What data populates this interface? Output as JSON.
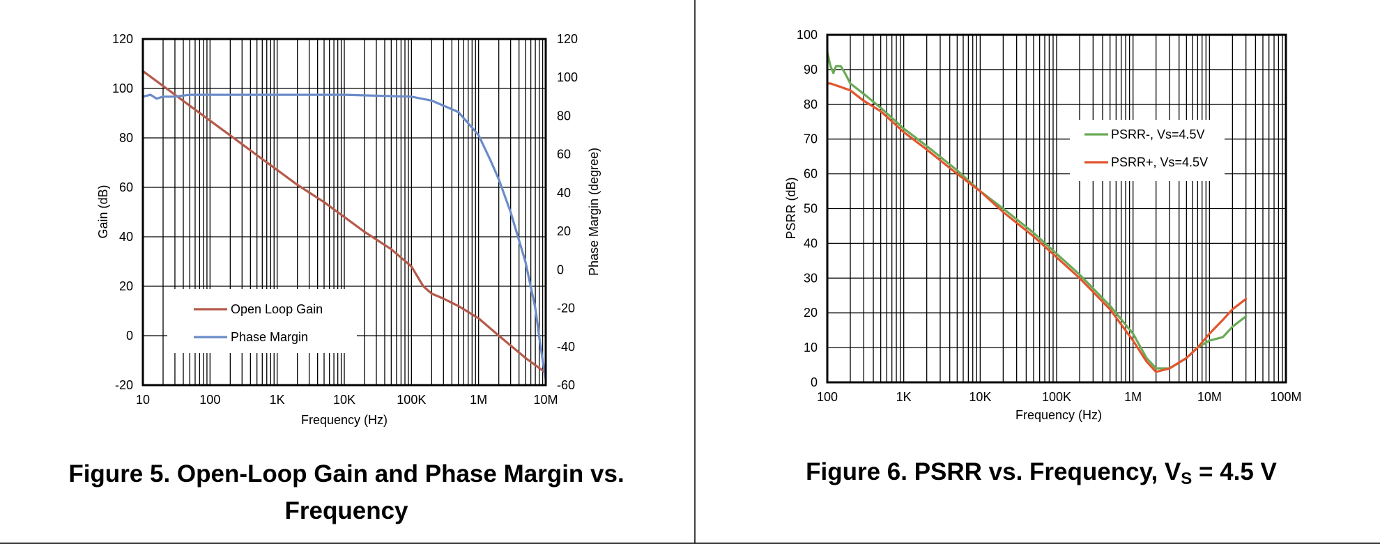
{
  "chart_data": [
    {
      "type": "line",
      "caption": "Figure 5. Open-Loop Gain and Phase Margin vs. Frequency",
      "caption_lines": [
        "Figure 5. Open-Loop Gain and Phase Margin vs.",
        "Frequency"
      ],
      "xlabel": "Frequency (Hz)",
      "ylabel": "Gain (dB)",
      "y2label": "Phase Margin (degree)",
      "xscale": "log",
      "xlim": [
        10,
        10000000
      ],
      "ylim": [
        -20,
        120
      ],
      "y2lim": [
        -60,
        120
      ],
      "xticks": [
        10,
        100,
        1000,
        10000,
        100000,
        1000000,
        10000000
      ],
      "xtick_labels": [
        "10",
        "100",
        "1K",
        "10K",
        "100K",
        "1M",
        "10M"
      ],
      "yticks": [
        -20,
        0,
        20,
        40,
        60,
        80,
        100,
        120
      ],
      "y2ticks": [
        -60,
        -40,
        -20,
        0,
        20,
        40,
        60,
        80,
        100,
        120
      ],
      "grid": true,
      "legend_position": "bottom-left",
      "series": [
        {
          "name": "Open Loop Gain",
          "axis": "left",
          "color": "#b55a4a",
          "x": [
            10,
            20,
            50,
            100,
            200,
            500,
            1000,
            2000,
            5000,
            10000,
            20000,
            50000,
            100000,
            150000,
            200000,
            300000,
            500000,
            1000000,
            2000000,
            5000000,
            10000000
          ],
          "y": [
            107,
            101,
            93,
            87,
            81,
            73,
            67,
            61,
            54,
            48,
            42,
            35,
            28,
            20,
            17,
            15,
            12,
            7,
            0,
            -9,
            -15
          ]
        },
        {
          "name": "Phase Margin",
          "axis": "right",
          "color": "#6b8cc9",
          "x": [
            10,
            13,
            16,
            20,
            30,
            50,
            100,
            1000,
            10000,
            100000,
            200000,
            500000,
            1000000,
            1500000,
            2000000,
            3000000,
            5000000,
            7000000,
            8000000,
            9000000,
            10000000
          ],
          "y": [
            90,
            91,
            89,
            90,
            90,
            91,
            91,
            91,
            91,
            90,
            88,
            82,
            70,
            57,
            47,
            30,
            4,
            -20,
            -35,
            -47,
            -57
          ]
        }
      ]
    },
    {
      "type": "line",
      "caption_main": "Figure 6. PSRR vs. Frequency, V",
      "caption_sub": "S",
      "caption_tail": " = 4.5 V",
      "xlabel": "Frequency (Hz)",
      "ylabel": "PSRR (dB)",
      "xscale": "log",
      "xlim": [
        100,
        100000000
      ],
      "ylim": [
        0,
        100
      ],
      "xticks": [
        100,
        1000,
        10000,
        100000,
        1000000,
        10000000,
        100000000
      ],
      "xtick_labels": [
        "100",
        "1K",
        "10K",
        "100K",
        "1M",
        "10M",
        "100M"
      ],
      "yticks": [
        0,
        10,
        20,
        30,
        40,
        50,
        60,
        70,
        80,
        90,
        100
      ],
      "grid": true,
      "legend_position": "upper-center-right",
      "series": [
        {
          "name": "PSRR-, Vs=4.5V",
          "color": "#6aaa58",
          "x": [
            100,
            110,
            120,
            130,
            150,
            170,
            200,
            300,
            500,
            1000,
            2000,
            5000,
            10000,
            20000,
            50000,
            100000,
            200000,
            500000,
            1000000,
            1500000,
            2000000,
            3000000,
            5000000,
            7000000,
            10000000,
            15000000,
            20000000,
            30000000
          ],
          "y": [
            95,
            91,
            89,
            91,
            91,
            89,
            86,
            83,
            79,
            73,
            68,
            61,
            55,
            50,
            43,
            37,
            31,
            22,
            14,
            7,
            4,
            4,
            7,
            10,
            12,
            13,
            16,
            19
          ]
        },
        {
          "name": "PSRR+, Vs=4.5V",
          "color": "#e2552d",
          "x": [
            100,
            110,
            150,
            200,
            300,
            500,
            1000,
            2000,
            5000,
            10000,
            20000,
            50000,
            100000,
            200000,
            500000,
            1000000,
            1500000,
            2000000,
            3000000,
            5000000,
            7000000,
            10000000,
            15000000,
            20000000,
            30000000
          ],
          "y": [
            86,
            86,
            85,
            84,
            81,
            78,
            72,
            67,
            60,
            55,
            49,
            42,
            36,
            30,
            21,
            12,
            6,
            3,
            4,
            7,
            10,
            14,
            18,
            21,
            24
          ]
        }
      ]
    }
  ]
}
